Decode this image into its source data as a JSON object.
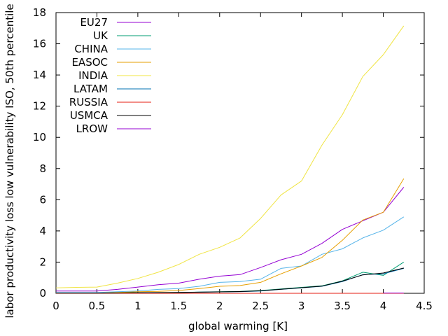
{
  "chart_data": {
    "type": "line",
    "xlabel": "global warming [K]",
    "ylabel": "labor productivity loss low vulnerability ISO, 50th percentile",
    "xlim": [
      0,
      4.5
    ],
    "ylim": [
      0,
      18
    ],
    "xticks": [
      "0",
      "0.5",
      "1",
      "1.5",
      "2",
      "2.5",
      "3",
      "3.5",
      "4",
      "4.5"
    ],
    "yticks": [
      "0",
      "2",
      "4",
      "6",
      "8",
      "10",
      "12",
      "14",
      "16",
      "18"
    ],
    "legend_position": "top-left",
    "x": [
      0,
      0.25,
      0.5,
      0.75,
      1.0,
      1.25,
      1.5,
      1.75,
      2.0,
      2.25,
      2.5,
      2.75,
      3.0,
      3.25,
      3.5,
      3.75,
      4.0,
      4.25
    ],
    "series": [
      {
        "name": "EU27",
        "color": "#9400d3",
        "values": [
          0.15,
          0.15,
          0.15,
          0.25,
          0.4,
          0.55,
          0.65,
          0.9,
          1.1,
          1.2,
          1.65,
          2.15,
          2.5,
          3.2,
          4.1,
          4.65,
          5.2,
          6.8
        ]
      },
      {
        "name": "UK",
        "color": "#009e73",
        "values": [
          0.02,
          0.02,
          0.02,
          0.03,
          0.04,
          0.05,
          0.06,
          0.08,
          0.1,
          0.12,
          0.18,
          0.28,
          0.38,
          0.48,
          0.8,
          1.35,
          1.15,
          2.0
        ]
      },
      {
        "name": "CHINA",
        "color": "#56b4e9",
        "values": [
          0.05,
          0.05,
          0.05,
          0.1,
          0.15,
          0.25,
          0.3,
          0.45,
          0.7,
          0.75,
          0.9,
          1.6,
          1.75,
          2.5,
          2.85,
          3.55,
          4.05,
          4.9
        ]
      },
      {
        "name": "EASOC",
        "color": "#e69f00",
        "values": [
          0.02,
          0.02,
          0.02,
          0.05,
          0.1,
          0.12,
          0.18,
          0.3,
          0.45,
          0.5,
          0.7,
          1.25,
          1.75,
          2.3,
          3.4,
          4.7,
          5.2,
          7.35
        ]
      },
      {
        "name": "INDIA",
        "color": "#f0e442",
        "values": [
          0.35,
          0.38,
          0.4,
          0.65,
          0.95,
          1.35,
          1.85,
          2.5,
          2.95,
          3.55,
          4.8,
          6.3,
          7.2,
          9.5,
          11.45,
          13.9,
          15.3,
          17.15
        ]
      },
      {
        "name": "LATAM",
        "color": "#0072b2",
        "values": [
          0.01,
          0.01,
          0.01,
          0.02,
          0.03,
          0.04,
          0.05,
          0.07,
          0.09,
          0.1,
          0.15,
          0.25,
          0.35,
          0.45,
          0.75,
          1.2,
          1.25,
          1.6
        ]
      },
      {
        "name": "RUSSIA",
        "color": "#e51e10",
        "values": [
          0.0,
          0.0,
          0.0,
          0.0,
          0.0,
          0.0,
          0.0,
          0.0,
          0.0,
          0.0,
          0.0,
          0.0,
          0.0,
          0.0,
          0.0,
          0.0,
          0.0,
          0.0
        ]
      },
      {
        "name": "USMCA",
        "color": "#000000",
        "values": [
          0.01,
          0.01,
          0.01,
          0.02,
          0.03,
          0.04,
          0.05,
          0.07,
          0.09,
          0.11,
          0.16,
          0.26,
          0.36,
          0.46,
          0.78,
          1.18,
          1.3,
          1.62
        ]
      },
      {
        "name": "LROW",
        "color": "#9400d3",
        "values": [
          null,
          null,
          null,
          null,
          null,
          null,
          null,
          null,
          null,
          null,
          null,
          null,
          null,
          null,
          null,
          null,
          0.02,
          0.02
        ]
      }
    ]
  }
}
